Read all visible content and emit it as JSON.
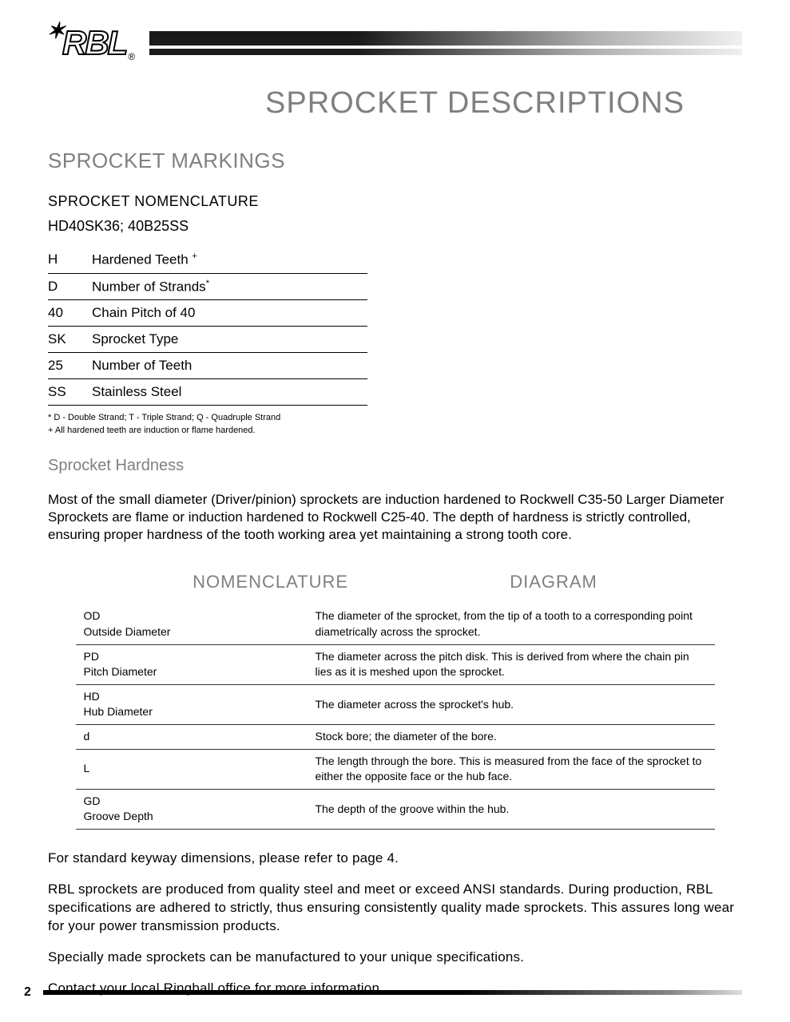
{
  "header": {
    "logo_text": "RBL",
    "logo_reg": "®"
  },
  "page_title": "SPROCKET DESCRIPTIONS",
  "markings": {
    "section_title": "SPROCKET MARKINGS",
    "subsection_title": "SPROCKET NOMENCLATURE",
    "example": "HD40SK36;  40B25SS",
    "rows": [
      {
        "code": "H",
        "desc": "Hardened Teeth ",
        "sup": "+"
      },
      {
        "code": "D",
        "desc": "Number of Strands",
        "sup": "*"
      },
      {
        "code": "40",
        "desc": "Chain Pitch of 40",
        "sup": ""
      },
      {
        "code": "SK",
        "desc": "Sprocket Type",
        "sup": ""
      },
      {
        "code": "25",
        "desc": "Number of Teeth",
        "sup": ""
      },
      {
        "code": "SS",
        "desc": "Stainless Steel",
        "sup": ""
      }
    ],
    "footnote1": "* D -  Double Strand; T -  Triple Strand; Q -  Quadruple Strand",
    "footnote2": "+ All hardened teeth are induction or flame hardened."
  },
  "hardness": {
    "title": "Sprocket Hardness",
    "text": "Most  of the small diameter (Driver/pinion) sprockets are induction hardened to Rockwell C35-50 Larger Diameter Sprockets are flame or induction hardened to Rockwell C25-40. The depth of hardness is strictly controlled, ensuring proper hardness of the tooth working area yet maintaining a strong tooth core."
  },
  "nomen_diagram": {
    "left_header": "NOMENCLATURE",
    "right_header": "DIAGRAM",
    "rows": [
      {
        "abbr": "OD",
        "full": "Outside Diameter",
        "desc": "The diameter of the sprocket, from the tip of a tooth to a corresponding point diametrically across the sprocket."
      },
      {
        "abbr": "PD",
        "full": "Pitch Diameter",
        "desc": "The diameter across the pitch disk.  This is derived from where the chain pin lies as it is meshed upon the sprocket."
      },
      {
        "abbr": "HD",
        "full": "Hub Diameter",
        "desc": "The diameter across the sprocket's hub."
      },
      {
        "abbr": "d",
        "full": "",
        "desc": "Stock bore; the diameter of the bore."
      },
      {
        "abbr": "L",
        "full": "",
        "desc": "The length through the bore.  This is measured from the face of the sprocket to either the opposite face or the hub face."
      },
      {
        "abbr": "GD",
        "full": "Groove Depth",
        "desc": "The depth of the groove within the hub."
      }
    ]
  },
  "closing": {
    "p1": "For standard keyway dimensions, please refer to page 4.",
    "p2": "RBL sprockets are produced from quality steel and meet or exceed ANSI standards.  During production, RBL specifications are adhered to strictly, thus ensuring consistently quality made sprockets.  This assures long wear for your power transmission products.",
    "p3": "Specially made sprockets can be manufactured to your unique specifications.",
    "p4": "Contact your local Ringball office for more information."
  },
  "page_number": "2"
}
